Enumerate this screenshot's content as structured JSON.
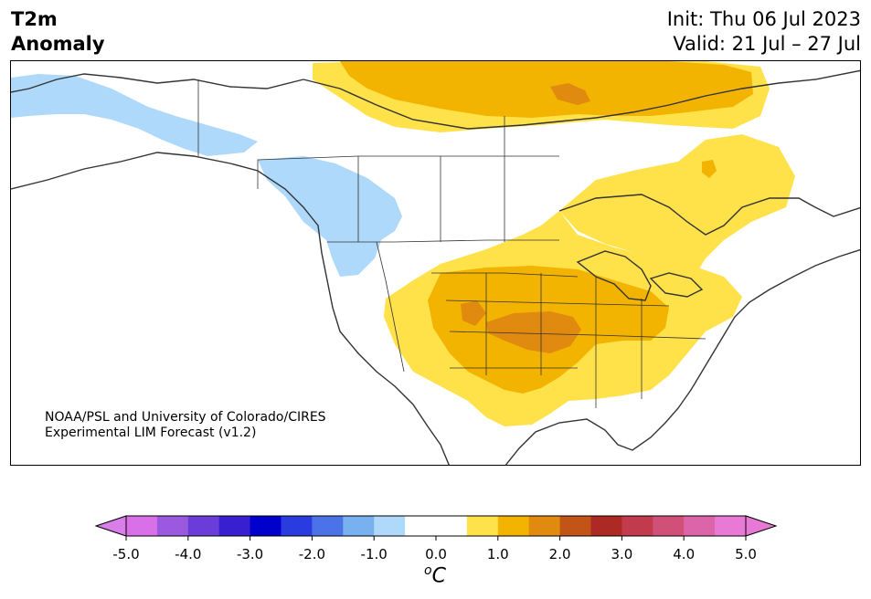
{
  "title": {
    "variable": "T2m",
    "kind": "Anomaly",
    "init": "Init: Thu 06 Jul 2023",
    "valid": "Valid: 21 Jul – 27 Jul"
  },
  "credit": {
    "line1": "NOAA/PSL and University of Colorado/CIRES",
    "line2": "Experimental LIM Forecast (v1.2)"
  },
  "colorbar": {
    "unit_base": "C",
    "unit_sup": "o",
    "ticks": [
      "-5.0",
      "-4.0",
      "-3.0",
      "-2.0",
      "-1.0",
      "0.0",
      "1.0",
      "2.0",
      "3.0",
      "4.0",
      "5.0"
    ],
    "bins": [
      "#da70e8",
      "#9b59e0",
      "#6a3ddb",
      "#3a1fd1",
      "#0000cc",
      "#2a3be0",
      "#4c72e8",
      "#78b0f0",
      "#aed9fb",
      "#ffffff",
      "#ffffff",
      "#ffe14a",
      "#f2b400",
      "#e08a10",
      "#c25418",
      "#ad2a24",
      "#c23a4e",
      "#d0507a",
      "#dc64a8",
      "#e87ad6"
    ],
    "under_color": "#d97de9",
    "over_color": "#e87ad6"
  },
  "map": {
    "colors": {
      "neg1": "#aed9fb",
      "pos1": "#ffe14a",
      "pos2": "#f2b400",
      "pos3": "#e08a10",
      "boundary": "#333333"
    }
  }
}
